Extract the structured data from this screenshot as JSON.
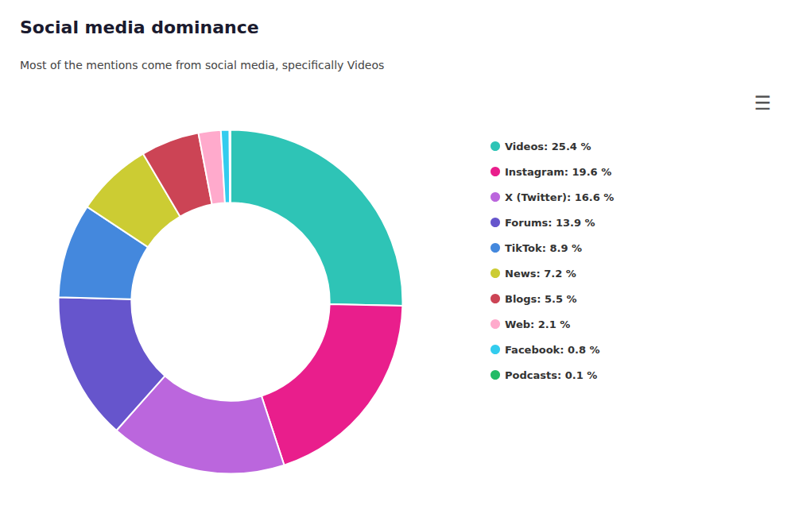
{
  "chart_data": {
    "type": "pie",
    "title": "Social media dominance",
    "subtitle": "Most of the mentions come from social media, specifically Videos",
    "categories": [
      "Videos: 25.4 %",
      "Instagram: 19.6 %",
      "X (Twitter): 16.6 %",
      "Forums: 13.9 %",
      "TikTok: 8.9 %",
      "News: 7.2 %",
      "Blogs: 5.5 %",
      "Web: 2.1 %",
      "Facebook: 0.8 %",
      "Podcasts: 0.1 %"
    ],
    "values": [
      25.4,
      19.6,
      16.6,
      13.9,
      8.9,
      7.2,
      5.5,
      2.1,
      0.8,
      0.1
    ],
    "colors": [
      "#2ec4b6",
      "#e91e8c",
      "#bb66dd",
      "#6655cc",
      "#4488dd",
      "#cccc33",
      "#cc4455",
      "#ffaacc",
      "#33ccee",
      "#22bb66"
    ],
    "legend": "right",
    "annotations": [
      "☰"
    ]
  }
}
